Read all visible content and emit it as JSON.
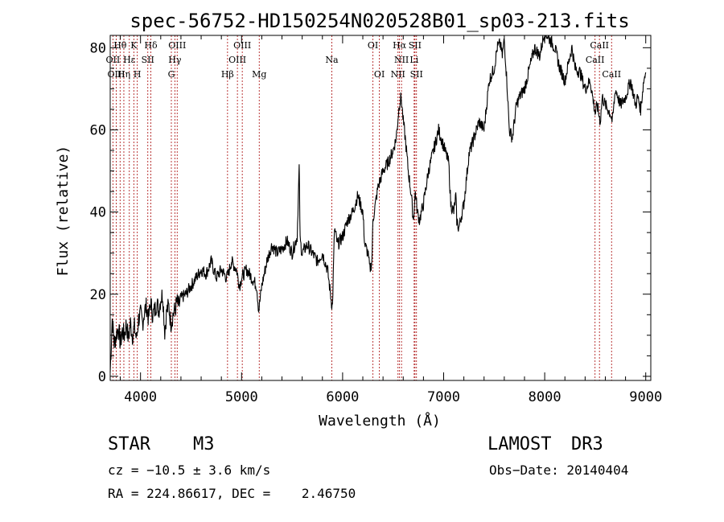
{
  "chart_data": {
    "type": "line",
    "title": "spec-56752-HD150254N020528B01_sp03-213.fits",
    "xlabel": "Wavelength (Å)",
    "ylabel": "Flux (relative)",
    "xlim": [
      3700,
      9050
    ],
    "ylim": [
      -1,
      83
    ],
    "xticks": [
      {
        "value": 4000,
        "label": "4000"
      },
      {
        "value": 5000,
        "label": "5000"
      },
      {
        "value": 6000,
        "label": "6000"
      },
      {
        "value": 7000,
        "label": "7000"
      },
      {
        "value": 8000,
        "label": "8000"
      },
      {
        "value": 9000,
        "label": "9000"
      }
    ],
    "yticks": [
      {
        "value": 0,
        "label": "0"
      },
      {
        "value": 20,
        "label": "20"
      },
      {
        "value": 40,
        "label": "40"
      },
      {
        "value": 60,
        "label": "60"
      },
      {
        "value": 80,
        "label": "80"
      }
    ],
    "lines": [
      {
        "label": "Hθ",
        "wavelength": 3798,
        "row": 0
      },
      {
        "label": "OII",
        "wavelength": 3727,
        "row": 1
      },
      {
        "label": "OIII",
        "wavelength": 3760,
        "row": 2
      },
      {
        "label": "Hε",
        "wavelength": 3889,
        "row": 1
      },
      {
        "label": "Hη",
        "wavelength": 3835,
        "row": 2
      },
      {
        "label": "K",
        "wavelength": 3934,
        "row": 0
      },
      {
        "label": "H",
        "wavelength": 3968,
        "row": 2
      },
      {
        "label": "SII",
        "wavelength": 4072,
        "row": 1
      },
      {
        "label": "Hδ",
        "wavelength": 4102,
        "row": 0
      },
      {
        "label": "OIII",
        "wavelength": 4363,
        "row": 0
      },
      {
        "label": "Hγ",
        "wavelength": 4340,
        "row": 1
      },
      {
        "label": "G",
        "wavelength": 4305,
        "row": 2
      },
      {
        "label": "Hβ",
        "wavelength": 4861,
        "row": 2
      },
      {
        "label": "OIII",
        "wavelength": 5007,
        "row": 0
      },
      {
        "label": "OIII",
        "wavelength": 4959,
        "row": 1
      },
      {
        "label": "Mg",
        "wavelength": 5175,
        "row": 2
      },
      {
        "label": "Na",
        "wavelength": 5893,
        "row": 1
      },
      {
        "label": "OI",
        "wavelength": 6300,
        "row": 0
      },
      {
        "label": "OI",
        "wavelength": 6364,
        "row": 2
      },
      {
        "label": "Hα",
        "wavelength": 6563,
        "row": 0
      },
      {
        "label": "NII",
        "wavelength": 6583,
        "row": 1
      },
      {
        "label": "NII",
        "wavelength": 6548,
        "row": 2
      },
      {
        "label": "SII",
        "wavelength": 6716,
        "row": 0
      },
      {
        "label": "Li",
        "wavelength": 6708,
        "row": 1
      },
      {
        "label": "SII",
        "wavelength": 6731,
        "row": 2
      },
      {
        "label": "CaII",
        "wavelength": 8542,
        "row": 0
      },
      {
        "label": "CaII",
        "wavelength": 8498,
        "row": 1
      },
      {
        "label": "CaII",
        "wavelength": 8662,
        "row": 2
      }
    ],
    "series": [
      {
        "name": "flux",
        "x": [
          3700,
          3720,
          3740,
          3760,
          3780,
          3800,
          3820,
          3840,
          3860,
          3880,
          3900,
          3920,
          3940,
          3960,
          3980,
          4000,
          4020,
          4040,
          4060,
          4080,
          4100,
          4120,
          4140,
          4160,
          4180,
          4200,
          4220,
          4240,
          4260,
          4280,
          4300,
          4320,
          4340,
          4360,
          4380,
          4400,
          4450,
          4500,
          4550,
          4600,
          4650,
          4700,
          4750,
          4800,
          4850,
          4870,
          4900,
          4950,
          4980,
          5000,
          5050,
          5100,
          5150,
          5170,
          5200,
          5250,
          5300,
          5350,
          5400,
          5450,
          5500,
          5550,
          5570,
          5580,
          5600,
          5650,
          5700,
          5750,
          5800,
          5850,
          5870,
          5890,
          5900,
          5920,
          5950,
          6000,
          6050,
          6100,
          6150,
          6200,
          6220,
          6250,
          6270,
          6290,
          6300,
          6350,
          6400,
          6450,
          6500,
          6530,
          6560,
          6580,
          6600,
          6620,
          6650,
          6680,
          6700,
          6720,
          6740,
          6760,
          6800,
          6850,
          6900,
          6950,
          7000,
          7050,
          7070,
          7100,
          7120,
          7130,
          7150,
          7200,
          7250,
          7300,
          7350,
          7400,
          7450,
          7500,
          7530,
          7560,
          7580,
          7600,
          7630,
          7650,
          7680,
          7700,
          7720,
          7750,
          7800,
          7850,
          7900,
          7950,
          8000,
          8050,
          8100,
          8150,
          8200,
          8250,
          8270,
          8300,
          8350,
          8400,
          8450,
          8500,
          8520,
          8550,
          8570,
          8600,
          8650,
          8670,
          8700,
          8750,
          8800,
          8850,
          8900,
          8920,
          8950,
          8980,
          9000
        ],
        "y": [
          1,
          14,
          8,
          10,
          12,
          8,
          11,
          10,
          13,
          9,
          13,
          10,
          12,
          9,
          14,
          15,
          13,
          16,
          17,
          14,
          18,
          15,
          16,
          18,
          16,
          19,
          20,
          11,
          16,
          17,
          13,
          15,
          16,
          18,
          17,
          19,
          20,
          22,
          24,
          26,
          25,
          28,
          24,
          26,
          24,
          25,
          28,
          26,
          22,
          24,
          26,
          24,
          22,
          16,
          22,
          28,
          32,
          30,
          31,
          33,
          30,
          34,
          51,
          33,
          30,
          32,
          30,
          28,
          30,
          26,
          22,
          18,
          17,
          36,
          32,
          34,
          38,
          40,
          44,
          40,
          32,
          30,
          26,
          28,
          38,
          46,
          50,
          52,
          55,
          58,
          66,
          68,
          62,
          58,
          50,
          44,
          38,
          45,
          40,
          38,
          42,
          50,
          55,
          60,
          56,
          52,
          42,
          40,
          44,
          38,
          36,
          42,
          54,
          58,
          62,
          60,
          72,
          75,
          80,
          81,
          78,
          82,
          70,
          60,
          58,
          62,
          66,
          68,
          70,
          75,
          80,
          78,
          84,
          82,
          80,
          75,
          72,
          78,
          80,
          75,
          74,
          70,
          72,
          64,
          66,
          62,
          68,
          66,
          64,
          62,
          70,
          66,
          68,
          72,
          66,
          68,
          65,
          72,
          74
        ]
      }
    ],
    "annotations": [
      {
        "label": "STAR",
        "value": "M3"
      },
      {
        "label": "LAMOST",
        "value": "DR3"
      },
      {
        "label": "cz",
        "value": "cz = −10.5 ± 3.6 km/s"
      },
      {
        "label": "Obs-Date",
        "value": "Obs−Date: 20140404"
      },
      {
        "label": "coordinates",
        "value": "RA = 224.86617, DEC =    2.46750"
      }
    ]
  }
}
